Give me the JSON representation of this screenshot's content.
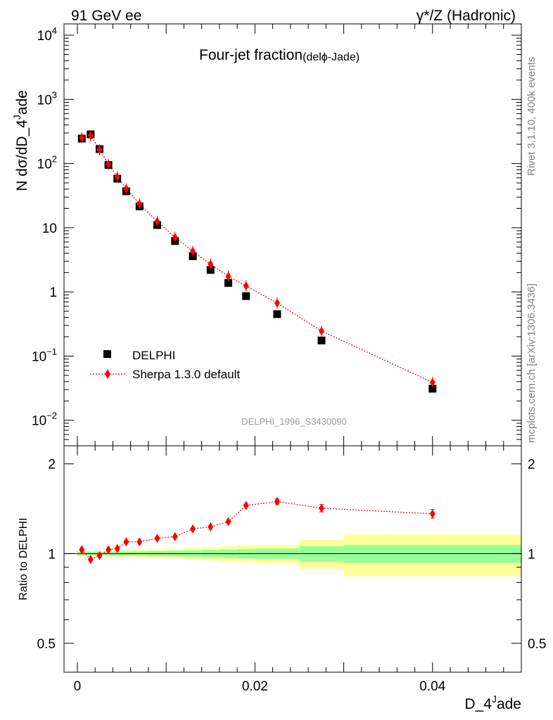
{
  "header": {
    "left": "91 GeV ee",
    "right": "γ*/Z (Hadronic)"
  },
  "side": {
    "rivet": "Rivet 3.1.10,  400k events",
    "mcplots": "mcplots.cern.ch [arXiv:1306.3436]"
  },
  "chart_data": {
    "type": "scatter",
    "title": "Four-jet fraction",
    "subtitle": "(delϕ-Jade)",
    "ylabel": "N dσ/dD_4^Jade",
    "ylabel_main": "N dσ/dD_4",
    "ylabel_sup": "J",
    "ylabel_tail": "ade",
    "xlabel_main": "D_4",
    "xlabel_sup": "J",
    "xlabel_tail": "ade",
    "ratio_ylabel": "Ratio to DELPHI",
    "watermark": "DELPHI_1996_S3430090",
    "xlim": [
      -0.0015,
      0.05
    ],
    "ylim": [
      0.004,
      15000
    ],
    "ratio_ylim": [
      0.4,
      2.3
    ],
    "xticks": [
      "0",
      "0.02",
      "0.04"
    ],
    "xtick_values": [
      0,
      0.02,
      0.04
    ],
    "yticks": [
      {
        "v": 10000,
        "base": "10",
        "exp": "4"
      },
      {
        "v": 1000,
        "base": "10",
        "exp": "3"
      },
      {
        "v": 100,
        "base": "10",
        "exp": "2"
      },
      {
        "v": 10,
        "base": "10",
        "exp": ""
      },
      {
        "v": 1,
        "base": "1",
        "exp": ""
      },
      {
        "v": 0.1,
        "base": "10",
        "exp": "−1"
      },
      {
        "v": 0.01,
        "base": "10",
        "exp": "−2"
      }
    ],
    "ratio_ticks": [
      {
        "v": 2,
        "label": "2"
      },
      {
        "v": 1,
        "label": "1"
      },
      {
        "v": 0.5,
        "label": "0.5"
      }
    ],
    "legend": {
      "data": "DELPHI",
      "mc": "Sherpa 1.3.0 default"
    },
    "x": [
      0.0005,
      0.0015,
      0.0025,
      0.0035,
      0.0045,
      0.0055,
      0.007,
      0.009,
      0.011,
      0.013,
      0.015,
      0.017,
      0.019,
      0.0225,
      0.0275,
      0.04
    ],
    "series": [
      {
        "name": "DELPHI",
        "values": [
          245,
          285,
          168,
          95,
          58,
          37,
          21.5,
          11,
          6.2,
          3.6,
          2.2,
          1.38,
          0.86,
          0.45,
          0.175,
          0.031
        ]
      },
      {
        "name": "Sherpa 1.3.0 default",
        "values": [
          253,
          272,
          165,
          98,
          62,
          40.5,
          23.5,
          12.5,
          7.1,
          4.3,
          2.7,
          1.75,
          1.24,
          0.67,
          0.245,
          0.039
        ]
      }
    ],
    "ratio": [
      1.03,
      0.955,
      0.985,
      1.03,
      1.04,
      1.095,
      1.095,
      1.125,
      1.14,
      1.21,
      1.23,
      1.28,
      1.45,
      1.495,
      1.42,
      1.36
    ],
    "ratio_err": [
      0.01,
      0.01,
      0.01,
      0.01,
      0.01,
      0.01,
      0.012,
      0.014,
      0.016,
      0.018,
      0.02,
      0.022,
      0.025,
      0.03,
      0.04,
      0.045
    ],
    "bands": [
      {
        "x0": 0.0,
        "x1": 0.001,
        "inner": 0.012,
        "outer": 0.022
      },
      {
        "x0": 0.001,
        "x1": 0.002,
        "inner": 0.012,
        "outer": 0.02
      },
      {
        "x0": 0.002,
        "x1": 0.003,
        "inner": 0.013,
        "outer": 0.022
      },
      {
        "x0": 0.003,
        "x1": 0.004,
        "inner": 0.014,
        "outer": 0.024
      },
      {
        "x0": 0.004,
        "x1": 0.005,
        "inner": 0.015,
        "outer": 0.026
      },
      {
        "x0": 0.005,
        "x1": 0.006,
        "inner": 0.016,
        "outer": 0.028
      },
      {
        "x0": 0.006,
        "x1": 0.008,
        "inner": 0.018,
        "outer": 0.03
      },
      {
        "x0": 0.008,
        "x1": 0.01,
        "inner": 0.02,
        "outer": 0.034
      },
      {
        "x0": 0.01,
        "x1": 0.012,
        "inner": 0.022,
        "outer": 0.038
      },
      {
        "x0": 0.012,
        "x1": 0.014,
        "inner": 0.025,
        "outer": 0.044
      },
      {
        "x0": 0.014,
        "x1": 0.016,
        "inner": 0.028,
        "outer": 0.05
      },
      {
        "x0": 0.016,
        "x1": 0.018,
        "inner": 0.032,
        "outer": 0.057
      },
      {
        "x0": 0.018,
        "x1": 0.02,
        "inner": 0.036,
        "outer": 0.065
      },
      {
        "x0": 0.02,
        "x1": 0.025,
        "inner": 0.04,
        "outer": 0.07
      },
      {
        "x0": 0.025,
        "x1": 0.03,
        "inner": 0.06,
        "outer": 0.11
      },
      {
        "x0": 0.03,
        "x1": 0.05,
        "inner": 0.07,
        "outer": 0.16
      }
    ],
    "colors": {
      "mc": "#ff0000",
      "data": "#000000",
      "inner_band": "#99ff99",
      "outer_band": "#ffff99",
      "watermark": "#999999",
      "side_text": "#808080"
    }
  }
}
